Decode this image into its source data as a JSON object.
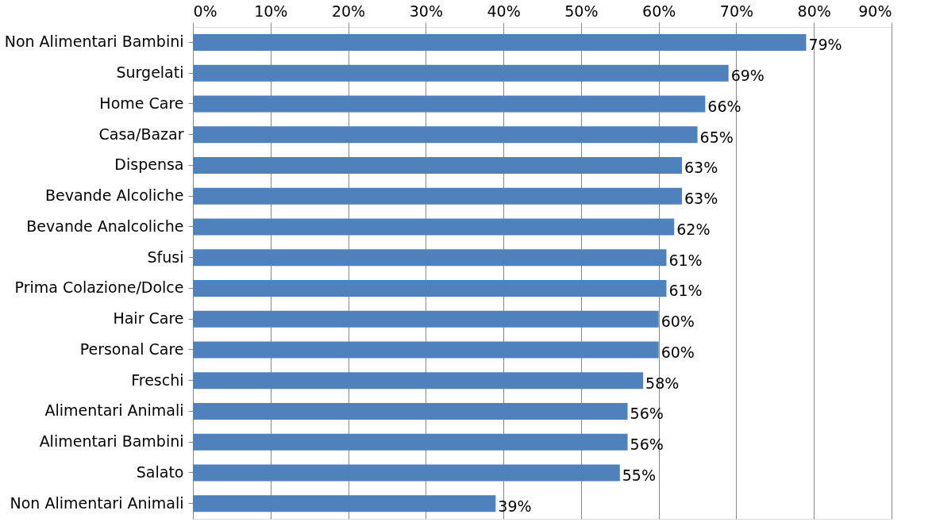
{
  "chart_data": {
    "type": "bar",
    "orientation": "horizontal",
    "categories": [
      "Non Alimentari Bambini",
      "Surgelati",
      "Home Care",
      "Casa/Bazar",
      "Dispensa",
      "Bevande Alcoliche",
      "Bevande Analcoliche",
      "Sfusi",
      "Prima Colazione/Dolce",
      "Hair Care",
      "Personal Care",
      "Freschi",
      "Alimentari Animali",
      "Alimentari Bambini",
      "Salato",
      "Non Alimentari Animali"
    ],
    "values": [
      79,
      69,
      66,
      65,
      63,
      63,
      62,
      61,
      61,
      60,
      60,
      58,
      56,
      56,
      55,
      39
    ],
    "value_labels": [
      "79%",
      "69%",
      "66%",
      "65%",
      "63%",
      "63%",
      "62%",
      "61%",
      "61%",
      "60%",
      "60%",
      "58%",
      "56%",
      "56%",
      "55%",
      "39%"
    ],
    "color": "#4f81bd",
    "xlim": [
      0,
      90
    ],
    "xticks": [
      {
        "value": 0,
        "label": "0%"
      },
      {
        "value": 10,
        "label": "10%"
      },
      {
        "value": 20,
        "label": "20%"
      },
      {
        "value": 30,
        "label": "30%"
      },
      {
        "value": 40,
        "label": "40%"
      },
      {
        "value": 50,
        "label": "50%"
      },
      {
        "value": 60,
        "label": "60%"
      },
      {
        "value": 70,
        "label": "70%"
      },
      {
        "value": 80,
        "label": "80%"
      },
      {
        "value": 90,
        "label": "90%"
      }
    ],
    "grid": "x"
  }
}
